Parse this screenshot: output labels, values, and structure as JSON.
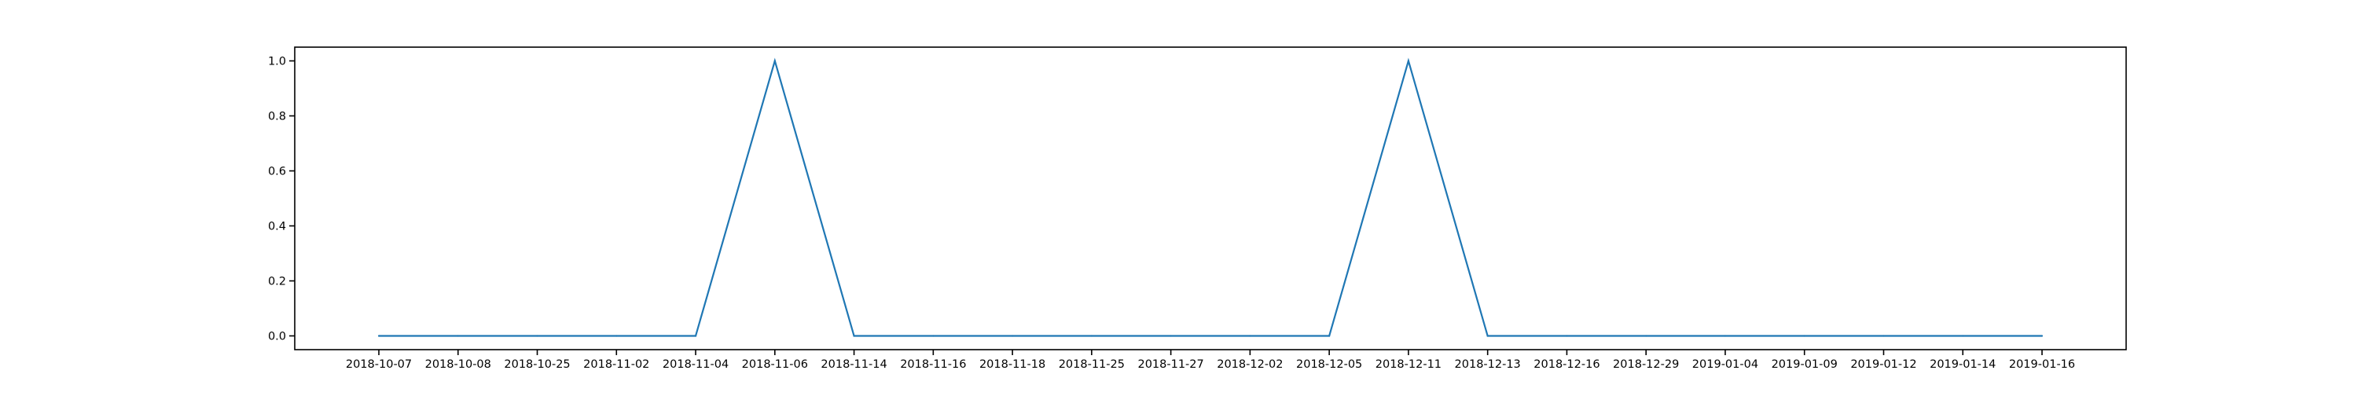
{
  "chart_data": {
    "type": "line",
    "title": "",
    "xlabel": "",
    "ylabel": "",
    "categories": [
      "2018-10-07",
      "2018-10-08",
      "2018-10-25",
      "2018-11-02",
      "2018-11-04",
      "2018-11-06",
      "2018-11-14",
      "2018-11-16",
      "2018-11-18",
      "2018-11-25",
      "2018-11-27",
      "2018-12-02",
      "2018-12-05",
      "2018-12-11",
      "2018-12-13",
      "2018-12-16",
      "2018-12-29",
      "2019-01-04",
      "2019-01-09",
      "2019-01-12",
      "2019-01-14",
      "2019-01-16"
    ],
    "series": [
      {
        "values": [
          0,
          0,
          0,
          0,
          0,
          1,
          0,
          0,
          0,
          0,
          0,
          0,
          0,
          1,
          0,
          0,
          0,
          0,
          0,
          0,
          0,
          0
        ]
      }
    ],
    "ylim": [
      -0.05,
      1.05
    ],
    "yticks": [
      0.0,
      0.2,
      0.4,
      0.6,
      0.8,
      1.0
    ],
    "ytick_labels": [
      "0.0",
      "0.2",
      "0.4",
      "0.6",
      "0.8",
      "1.0"
    ],
    "grid": false,
    "colors": {
      "line": "#1f77b4",
      "axes": "#000000"
    }
  }
}
